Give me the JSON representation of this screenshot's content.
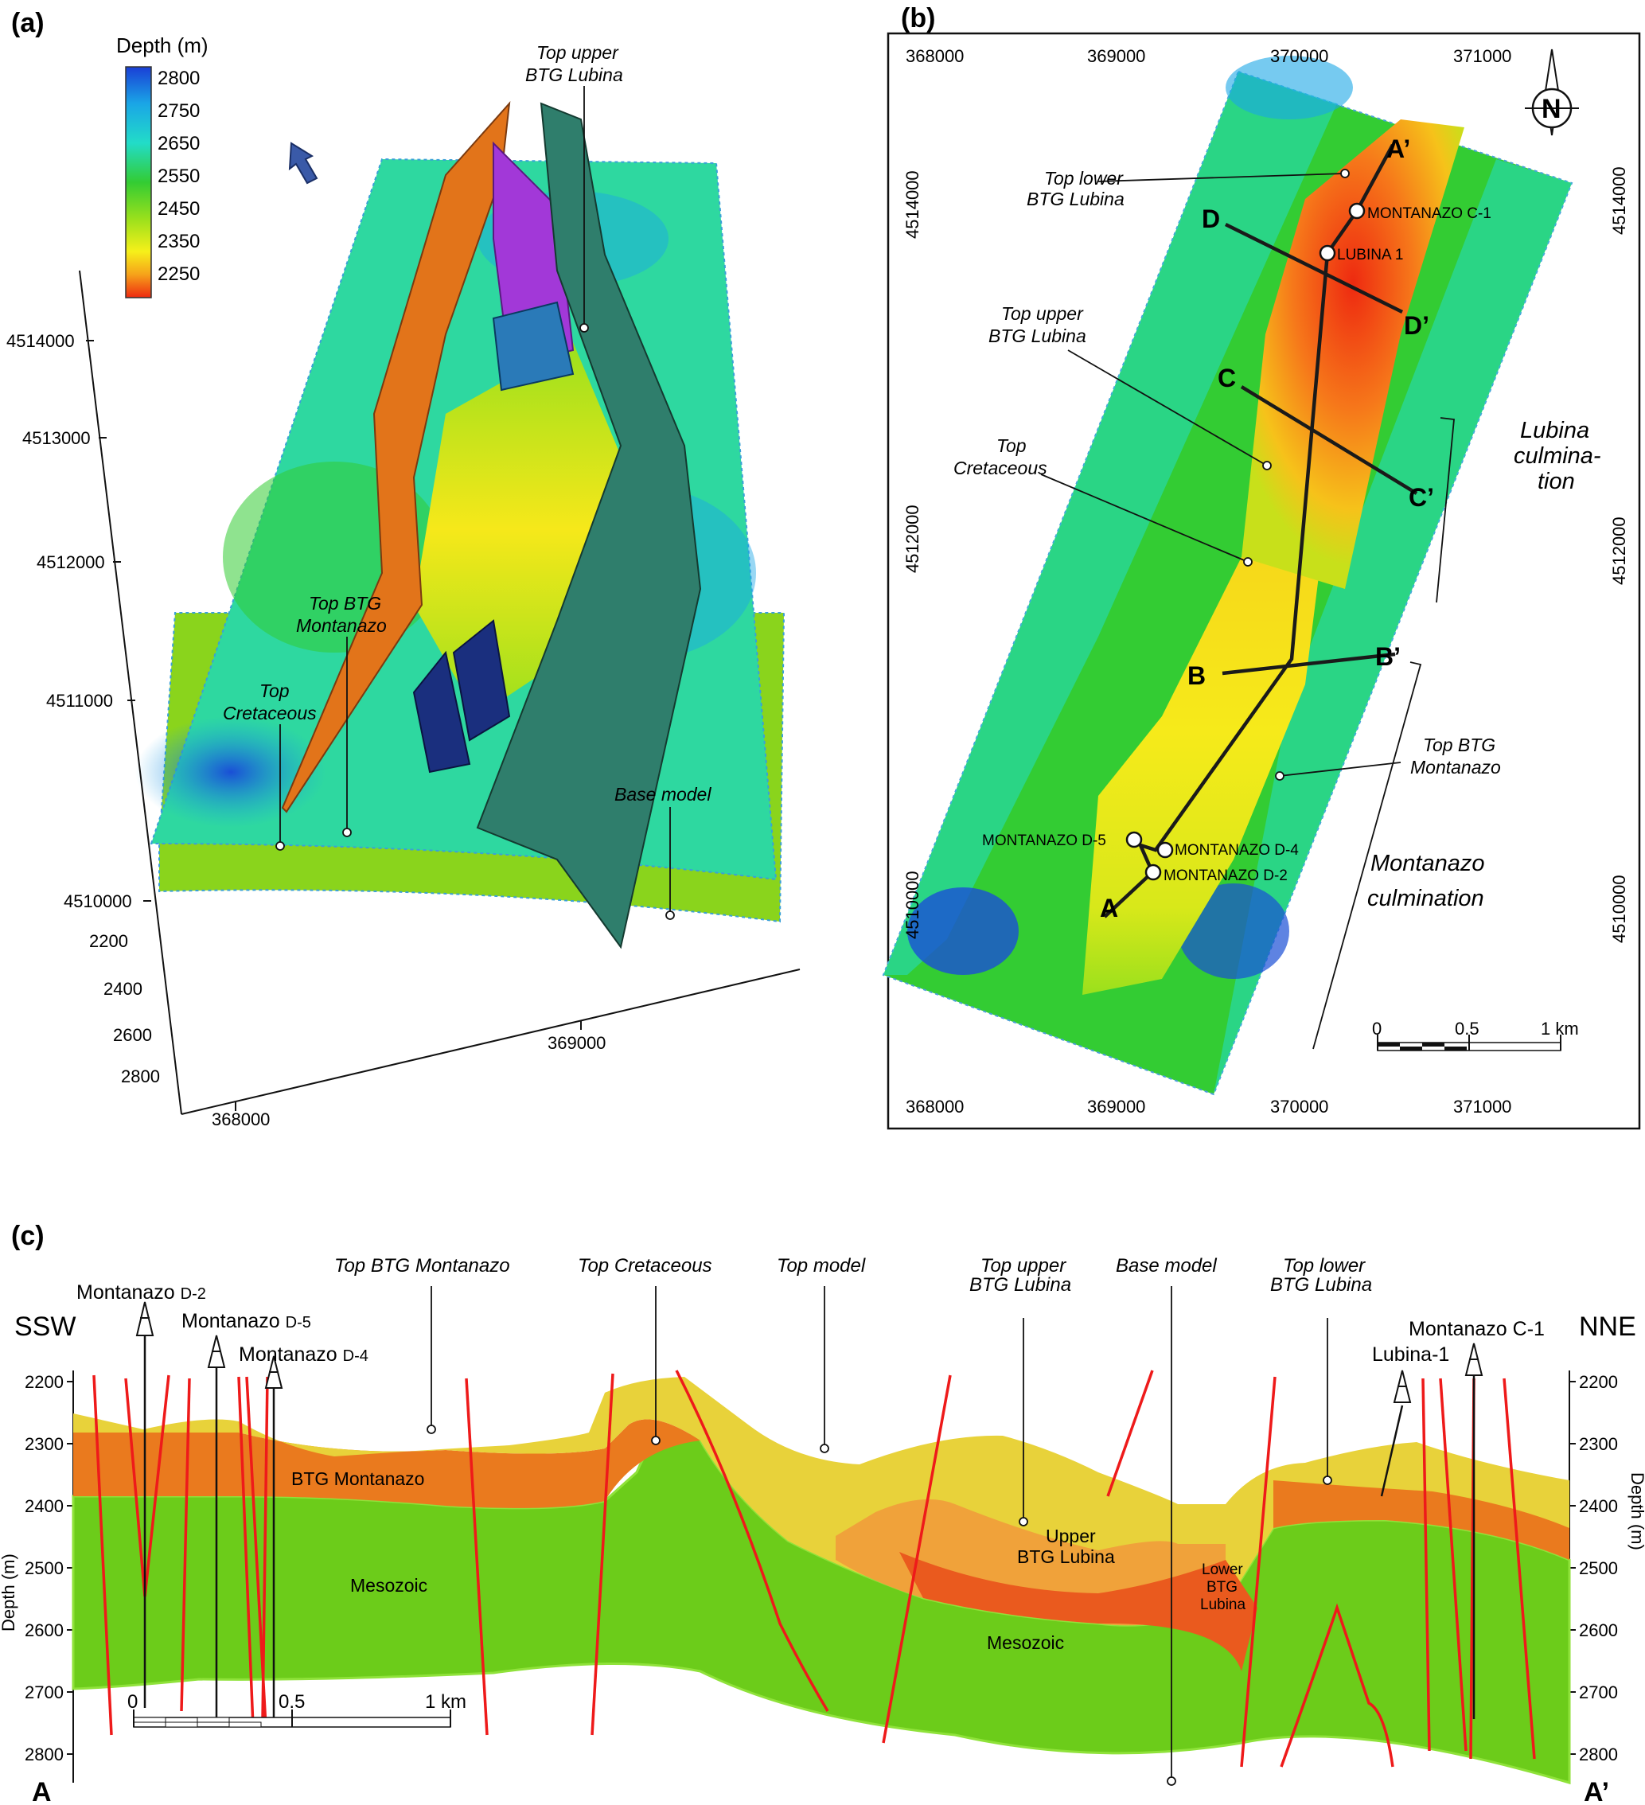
{
  "panels": {
    "a": {
      "letter": "(a)"
    },
    "b": {
      "letter": "(b)"
    },
    "c": {
      "letter": "(c)"
    }
  },
  "colors": {
    "depth_2800": "#1a3fd6",
    "depth_2750": "#1aa6e6",
    "depth_2650": "#22dcc8",
    "depth_2550": "#33cc33",
    "depth_2450": "#9be01c",
    "depth_2350": "#f6f01a",
    "depth_2300": "#f6a21a",
    "depth_2250": "#ee2a10",
    "fault_orange": "#e2741a",
    "fault_teal": "#2f7e6c",
    "fault_purple": "#a238d8",
    "fault_navy": "#1a2f7e",
    "section_yellow": "#e8d23a",
    "section_orange": "#f0a23a",
    "section_darkorange": "#ea5a1e",
    "section_green": "#6ccc1a",
    "fault_red": "#ee1a1a"
  },
  "legend": {
    "title": "Depth (m)",
    "ticks": [
      "2800",
      "2750",
      "2650",
      "2550",
      "2450",
      "2350",
      "2250"
    ]
  },
  "panel_a": {
    "labels": {
      "top_upper": [
        "Top upper",
        "BTG Lubina"
      ],
      "top_btg_montanazo": [
        "Top BTG",
        "Montanazo"
      ],
      "top_cretaceous": [
        "Top",
        "Cretaceous"
      ],
      "base_model": "Base model"
    },
    "northing_ticks": [
      "4514000",
      "4513000",
      "4512000",
      "4511000",
      "4510000"
    ],
    "depth_ticks": [
      "2200",
      "2400",
      "2600",
      "2800"
    ],
    "easting_ticks": [
      "368000",
      "369000"
    ]
  },
  "panel_b": {
    "easting_ticks": [
      "368000",
      "369000",
      "370000",
      "371000"
    ],
    "northing_ticks": [
      "4514000",
      "4512000",
      "4510000"
    ],
    "north_symbol": "N",
    "labels": {
      "top_lower": [
        "Top lower",
        "BTG Lubina"
      ],
      "top_upper": [
        "Top upper",
        "BTG Lubina"
      ],
      "top_cretaceous": [
        "Top",
        "Cretaceous"
      ],
      "top_btg_montanazo": [
        "Top BTG",
        "Montanazo"
      ],
      "lubina_culmination": [
        "Lubina",
        "culmina-",
        "tion"
      ],
      "montanazo_culmination": [
        "Montanazo",
        "culmination"
      ]
    },
    "wells": [
      "MONTANAZO C-1",
      "LUBINA 1",
      "MONTANAZO D-5",
      "MONTANAZO D-4",
      "MONTANAZO D-2"
    ],
    "section_points": [
      "A",
      "A’",
      "B",
      "B’",
      "C",
      "C’",
      "D",
      "D’"
    ],
    "scale": [
      "0",
      "0.5",
      "1 km"
    ]
  },
  "panel_c": {
    "ends": {
      "left_dir": "SSW",
      "right_dir": "NNE",
      "left_pt": "A",
      "right_pt": "A’"
    },
    "depth_ticks": [
      "2200",
      "2300",
      "2400",
      "2500",
      "2600",
      "2700",
      "2800"
    ],
    "axis_label": "Depth (m)",
    "wells": {
      "d2": [
        "Montanazo",
        "D-2"
      ],
      "d5": [
        "Montanazo",
        "D-5"
      ],
      "d4": [
        "Montanazo",
        "D-4"
      ],
      "c1": "Montanazo C-1",
      "l1": "Lubina-1"
    },
    "top_labels": {
      "top_btg_montanazo": "Top BTG Montanazo",
      "top_cretaceous": "Top Cretaceous",
      "top_model": "Top model",
      "top_upper": [
        "Top upper",
        "BTG Lubina"
      ],
      "base_model": "Base model",
      "top_lower": [
        "Top lower",
        "BTG Lubina"
      ]
    },
    "units": {
      "btg_montanazo": "BTG Montanazo",
      "mesozoic_left": "Mesozoic",
      "mesozoic_right": "Mesozoic",
      "upper_btg": [
        "Upper",
        "BTG Lubina"
      ],
      "lower_btg": [
        "Lower",
        "BTG",
        "Lubina"
      ]
    },
    "scale": [
      "0",
      "0.5",
      "1 km"
    ]
  }
}
